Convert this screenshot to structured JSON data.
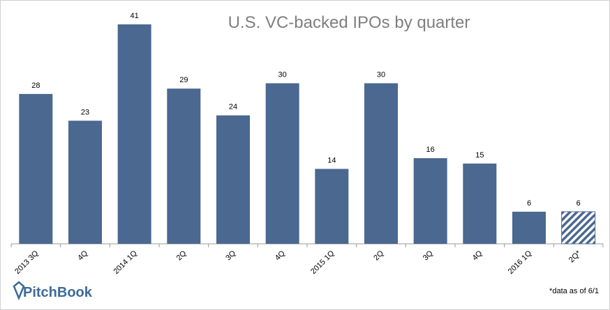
{
  "chart_data": {
    "type": "bar",
    "title": "U.S. VC-backed IPOs by quarter",
    "categories": [
      "2013 3Q",
      "4Q",
      "2014 1Q",
      "2Q",
      "3Q",
      "4Q",
      "2015 1Q",
      "2Q",
      "3Q",
      "4Q",
      "2016 1Q",
      "2Q*"
    ],
    "values": [
      28,
      23,
      41,
      29,
      24,
      30,
      14,
      30,
      16,
      15,
      6,
      6
    ],
    "color": "#4a6890",
    "bar_styles": [
      "solid",
      "solid",
      "solid",
      "solid",
      "solid",
      "solid",
      "solid",
      "solid",
      "solid",
      "solid",
      "solid",
      "hatched"
    ],
    "footnote": "*data as of 6/1",
    "logo": "PitchBook"
  }
}
